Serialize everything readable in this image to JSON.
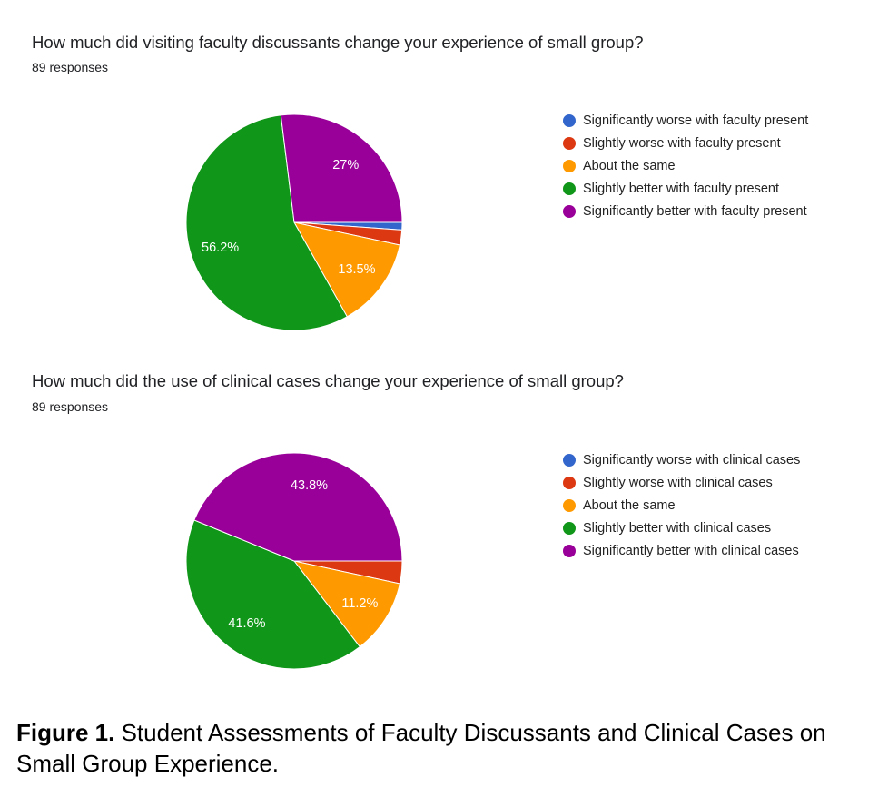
{
  "chart_data": [
    {
      "type": "pie",
      "title": "How much did visiting faculty discussants change your experience of small group?",
      "responses_label": "89 responses",
      "total": 89,
      "slices": [
        {
          "name": "Significantly worse with faculty present",
          "value": 1,
          "percent": 1.1,
          "label": "",
          "color": "#3366cc"
        },
        {
          "name": "Slightly worse with faculty present",
          "value": 2,
          "percent": 2.2,
          "label": "",
          "color": "#dc3912"
        },
        {
          "name": "About the same",
          "value": 12,
          "percent": 13.5,
          "label": "13.5%",
          "color": "#ff9900"
        },
        {
          "name": "Slightly better with faculty present",
          "value": 50,
          "percent": 56.2,
          "label": "56.2%",
          "color": "#109618"
        },
        {
          "name": "Significantly better with faculty present",
          "value": 24,
          "percent": 27,
          "label": "27%",
          "color": "#990099"
        }
      ],
      "legend_position": "right"
    },
    {
      "type": "pie",
      "title": "How much did the use of clinical cases change your experience of small group?",
      "responses_label": "89 responses",
      "total": 89,
      "slices": [
        {
          "name": "Significantly worse with clinical cases",
          "value": 0,
          "percent": 0,
          "label": "",
          "color": "#3366cc"
        },
        {
          "name": "Slightly worse with clinical cases",
          "value": 3,
          "percent": 3.4,
          "label": "",
          "color": "#dc3912"
        },
        {
          "name": "About the same",
          "value": 10,
          "percent": 11.2,
          "label": "11.2%",
          "color": "#ff9900"
        },
        {
          "name": "Slightly better with clinical cases",
          "value": 37,
          "percent": 41.6,
          "label": "41.6%",
          "color": "#109618"
        },
        {
          "name": "Significantly better with clinical cases",
          "value": 39,
          "percent": 43.8,
          "label": "43.8%",
          "color": "#990099"
        }
      ],
      "legend_position": "right"
    }
  ],
  "caption": {
    "figure_label": "Figure 1.",
    "text": " Student Assessments of Faculty Discussants and Clinical Cases on Small Group Experience."
  }
}
